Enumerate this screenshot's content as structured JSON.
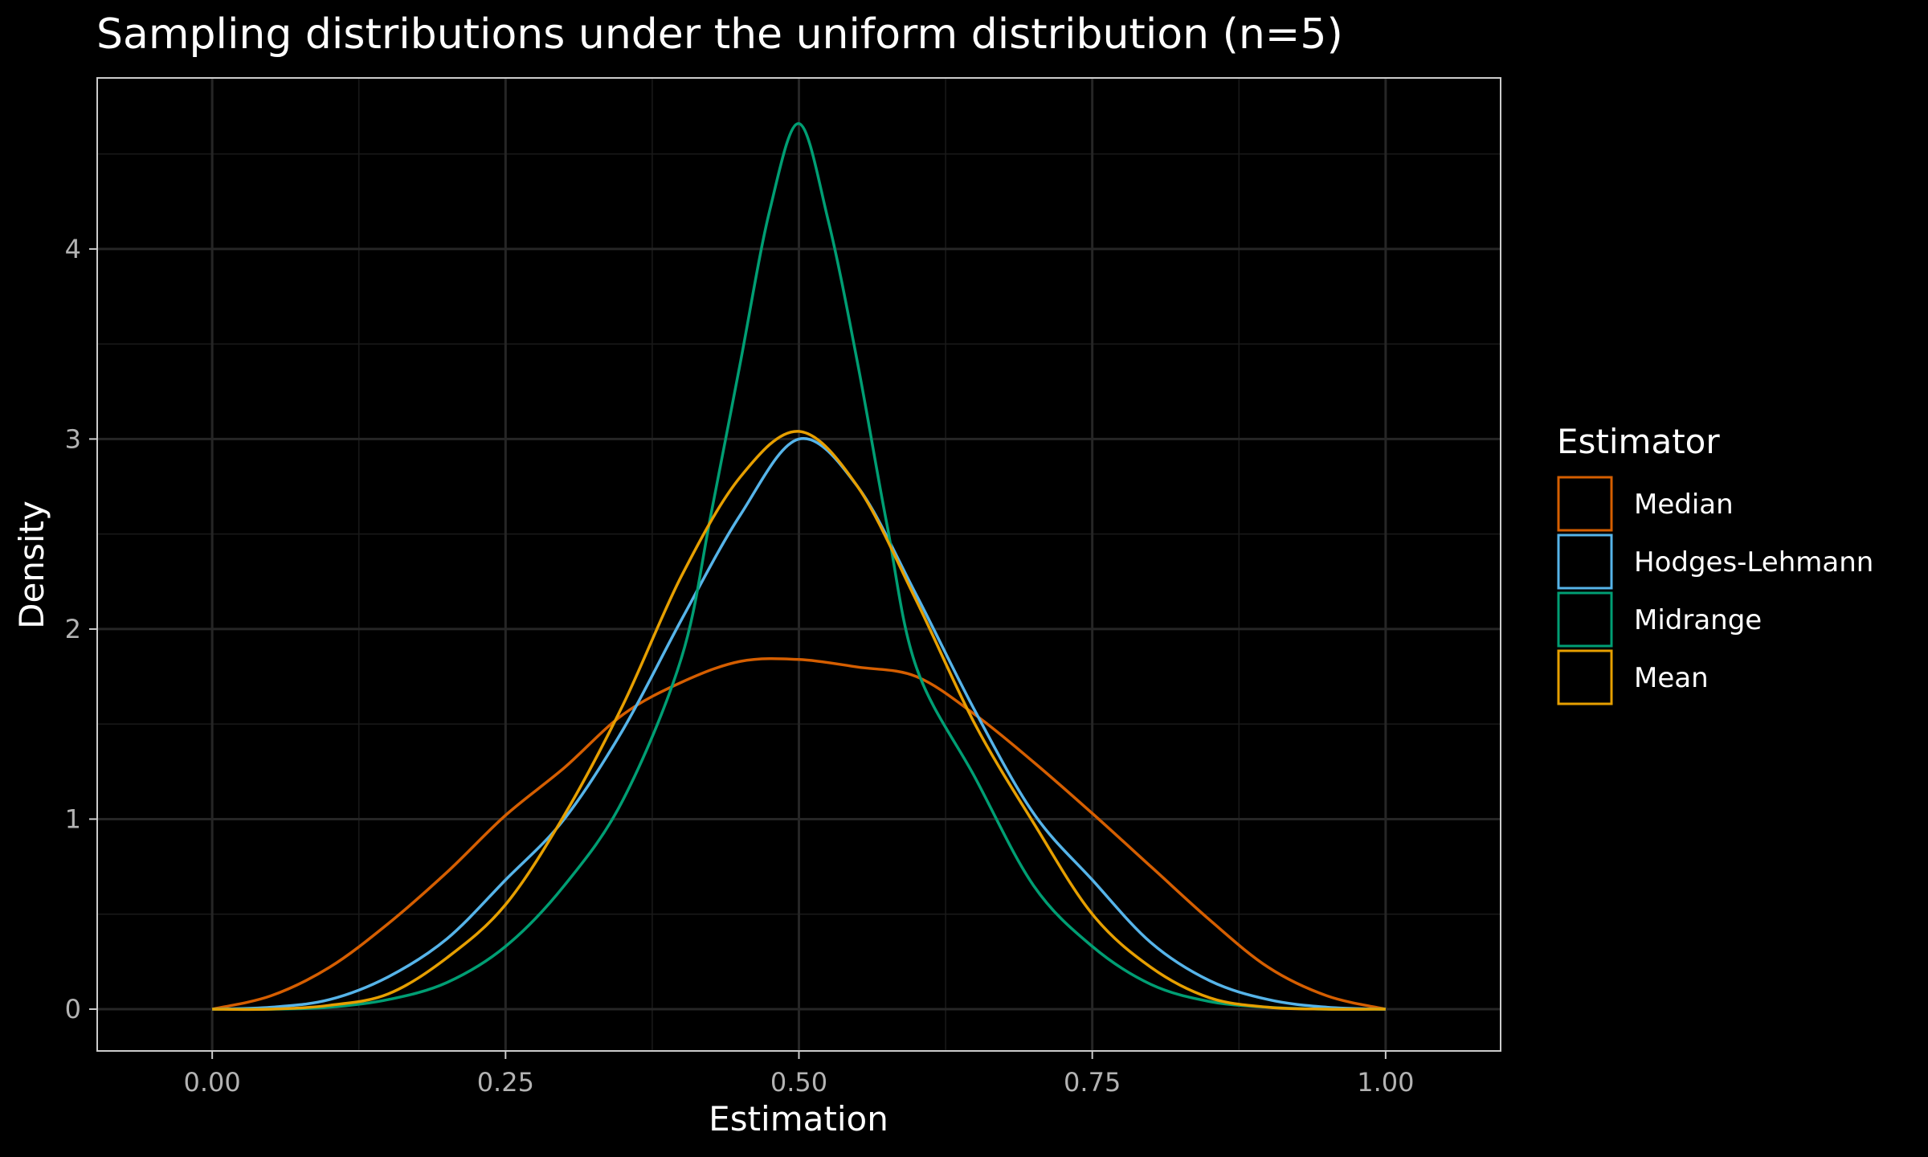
{
  "chart_data": {
    "type": "line",
    "title": "Sampling distributions under the uniform distribution (n=5)",
    "xlabel": "Estimation",
    "ylabel": "Density",
    "xlim": [
      -0.098,
      1.098
    ],
    "ylim": [
      -0.22,
      4.9
    ],
    "x_ticks": [
      0.0,
      0.25,
      0.5,
      0.75,
      1.0
    ],
    "x_tick_labels": [
      "0.00",
      "0.25",
      "0.50",
      "0.75",
      "1.00"
    ],
    "y_ticks": [
      0,
      1,
      2,
      3,
      4
    ],
    "y_tick_labels": [
      "0",
      "1",
      "2",
      "3",
      "4"
    ],
    "grid": true,
    "legend": {
      "title": "Estimator",
      "position": "right"
    },
    "background": "#000000",
    "series": [
      {
        "name": "Median",
        "color": "#d55e00",
        "x": [
          0.0,
          0.05,
          0.1,
          0.15,
          0.2,
          0.25,
          0.3,
          0.35,
          0.4,
          0.45,
          0.5,
          0.55,
          0.6,
          0.65,
          0.7,
          0.75,
          0.8,
          0.85,
          0.9,
          0.95,
          1.0
        ],
        "values": [
          0.0,
          0.07,
          0.22,
          0.45,
          0.72,
          1.02,
          1.27,
          1.55,
          1.72,
          1.83,
          1.84,
          1.8,
          1.75,
          1.55,
          1.3,
          1.03,
          0.75,
          0.47,
          0.22,
          0.07,
          0.0
        ]
      },
      {
        "name": "Hodges-Lehmann",
        "color": "#56b4e9",
        "x": [
          0.0,
          0.05,
          0.1,
          0.15,
          0.2,
          0.25,
          0.3,
          0.35,
          0.4,
          0.45,
          0.5,
          0.55,
          0.6,
          0.65,
          0.7,
          0.75,
          0.8,
          0.85,
          0.9,
          0.95,
          1.0
        ],
        "values": [
          0.0,
          0.01,
          0.05,
          0.17,
          0.37,
          0.68,
          1.0,
          1.47,
          2.05,
          2.6,
          3.0,
          2.75,
          2.18,
          1.57,
          1.03,
          0.68,
          0.35,
          0.15,
          0.05,
          0.01,
          0.0
        ]
      },
      {
        "name": "Midrange",
        "color": "#009e73",
        "x": [
          0.0,
          0.05,
          0.1,
          0.15,
          0.2,
          0.25,
          0.3,
          0.35,
          0.4,
          0.425,
          0.45,
          0.475,
          0.5,
          0.525,
          0.55,
          0.575,
          0.6,
          0.65,
          0.7,
          0.75,
          0.8,
          0.85,
          0.9,
          0.95,
          1.0
        ],
        "values": [
          0.0,
          0.0,
          0.01,
          0.05,
          0.14,
          0.33,
          0.65,
          1.1,
          1.85,
          2.6,
          3.4,
          4.2,
          4.66,
          4.15,
          3.4,
          2.55,
          1.8,
          1.22,
          0.65,
          0.33,
          0.13,
          0.04,
          0.01,
          0.0,
          0.0
        ]
      },
      {
        "name": "Mean",
        "color": "#e69f00",
        "x": [
          0.0,
          0.05,
          0.1,
          0.15,
          0.2,
          0.25,
          0.3,
          0.35,
          0.4,
          0.45,
          0.5,
          0.55,
          0.6,
          0.65,
          0.7,
          0.75,
          0.8,
          0.85,
          0.9,
          0.95,
          1.0
        ],
        "values": [
          0.0,
          0.0,
          0.02,
          0.08,
          0.27,
          0.55,
          1.02,
          1.6,
          2.28,
          2.8,
          3.04,
          2.75,
          2.15,
          1.5,
          0.98,
          0.5,
          0.22,
          0.06,
          0.01,
          0.0,
          0.0
        ]
      }
    ]
  }
}
